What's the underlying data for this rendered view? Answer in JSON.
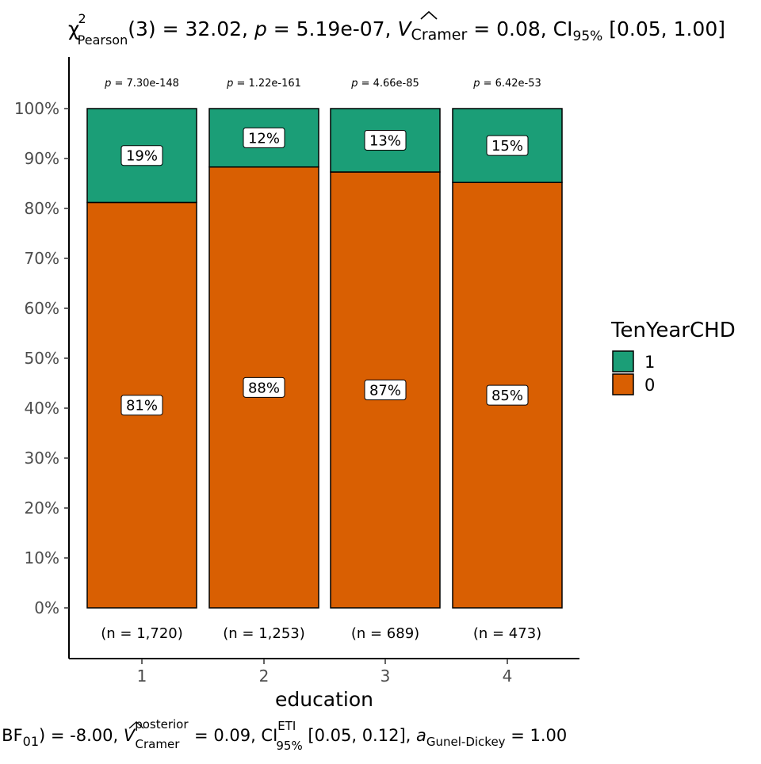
{
  "chart_data": {
    "type": "bar",
    "stacked": true,
    "percent": true,
    "title_parts": {
      "chi": "χ",
      "chi_sup": "2",
      "chi_sub": "Pearson",
      "stat": "(3) = 32.02, ",
      "p_sym": "p",
      "p_val": " = 5.19e-07, ",
      "v_sym": "V",
      "v_sub": "Cramer",
      "v_val": " = 0.08, CI",
      "ci_sub": "95%",
      "ci_val": " [0.05, 1.00]"
    },
    "xlabel": "education",
    "ylabel": "",
    "categories": [
      "1",
      "2",
      "3",
      "4"
    ],
    "ylim": [
      0,
      100
    ],
    "yticks": [
      "0%",
      "10%",
      "20%",
      "30%",
      "40%",
      "50%",
      "60%",
      "70%",
      "80%",
      "90%",
      "100%"
    ],
    "series": [
      {
        "name": "0",
        "color": "#D95F02",
        "values": [
          81.2,
          88.3,
          87.3,
          85.2
        ],
        "labels": [
          "81%",
          "88%",
          "87%",
          "85%"
        ]
      },
      {
        "name": "1",
        "color": "#1B9E77",
        "values": [
          18.8,
          11.7,
          12.7,
          14.8
        ],
        "labels": [
          "19%",
          "12%",
          "13%",
          "15%"
        ]
      }
    ],
    "p_labels": [
      "7.30e-148",
      "1.22e-161",
      "4.66e-85",
      "6.42e-53"
    ],
    "p_prefix": "p",
    "n_labels": [
      "(n = 1,720)",
      "(n = 1,253)",
      "(n = 689)",
      "(n = 473)"
    ],
    "legend": {
      "title": "TenYearCHD",
      "order": [
        "1",
        "0"
      ],
      "position": "right"
    },
    "grid": false,
    "caption_parts": {
      "bf": "BF",
      "bf_sub": "01",
      "bf_val": ") = -8.00, ",
      "v_sym": "V",
      "v_sup": "posterior",
      "v_sub": "Cramer",
      "v_val": " = 0.09, CI",
      "ci_sup": "ETI",
      "ci_sub": "95%",
      "ci_val": " [0.05, 0.12], ",
      "a_sym": "a",
      "a_sub": "Gunel-Dickey",
      "a_val": " = 1.00"
    }
  }
}
